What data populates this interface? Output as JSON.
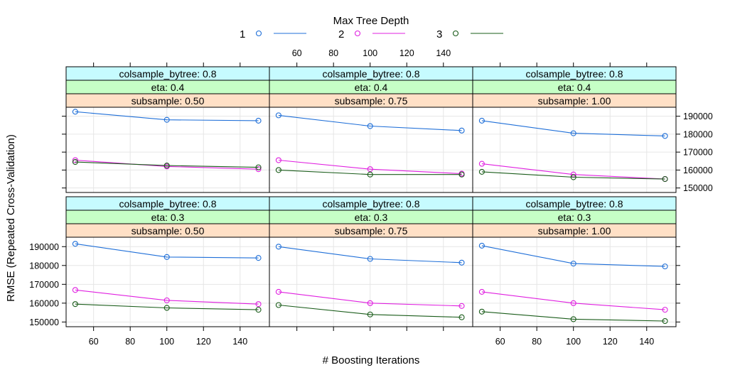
{
  "chart_data": {
    "type": "line",
    "legend": {
      "title": "Max Tree Depth",
      "position": "top",
      "entries": [
        {
          "label": "1",
          "color": "#1f6fd8"
        },
        {
          "label": "2",
          "color": "#e020e0"
        },
        {
          "label": "3",
          "color": "#1a5c1a"
        }
      ]
    },
    "xlabel": "# Boosting Iterations",
    "ylabel": "RMSE (Repeated Cross-Validation)",
    "x_ticks": [
      "60",
      "80",
      "100",
      "120",
      "140"
    ],
    "x_tick_values": [
      60,
      80,
      100,
      120,
      140
    ],
    "y_ticks": [
      "150000",
      "160000",
      "170000",
      "180000",
      "190000"
    ],
    "y_tick_values": [
      150000,
      160000,
      170000,
      180000,
      190000
    ],
    "xlim": [
      45,
      156
    ],
    "ylim": [
      147500,
      195000
    ],
    "grid": true,
    "strip_colors": {
      "colsample_bytree": "#c6fbff",
      "eta": "#c6ffc6",
      "subsample": "#ffe0c6"
    },
    "panels": [
      {
        "strips": [
          "colsample_bytree: 0.8",
          "eta: 0.4",
          "subsample: 0.50"
        ],
        "series": [
          {
            "label": "1",
            "x": [
              50,
              100,
              150
            ],
            "y": [
              192500,
              188000,
              187500
            ]
          },
          {
            "label": "2",
            "x": [
              50,
              100,
              150
            ],
            "y": [
              165500,
              162000,
              160500
            ]
          },
          {
            "label": "3",
            "x": [
              50,
              100,
              150
            ],
            "y": [
              164500,
              162500,
              161500
            ]
          }
        ]
      },
      {
        "strips": [
          "colsample_bytree: 0.8",
          "eta: 0.4",
          "subsample: 0.75"
        ],
        "series": [
          {
            "label": "1",
            "x": [
              50,
              100,
              150
            ],
            "y": [
              190500,
              184500,
              182000
            ]
          },
          {
            "label": "2",
            "x": [
              50,
              100,
              150
            ],
            "y": [
              165500,
              160500,
              158000
            ]
          },
          {
            "label": "3",
            "x": [
              50,
              100,
              150
            ],
            "y": [
              160000,
              157500,
              157500
            ]
          }
        ]
      },
      {
        "strips": [
          "colsample_bytree: 0.8",
          "eta: 0.4",
          "subsample: 1.00"
        ],
        "series": [
          {
            "label": "1",
            "x": [
              50,
              100,
              150
            ],
            "y": [
              187500,
              180500,
              179000
            ]
          },
          {
            "label": "2",
            "x": [
              50,
              100,
              150
            ],
            "y": [
              163500,
              157500,
              155000
            ]
          },
          {
            "label": "3",
            "x": [
              50,
              100,
              150
            ],
            "y": [
              159000,
              156000,
              155000
            ]
          }
        ]
      },
      {
        "strips": [
          "colsample_bytree: 0.8",
          "eta: 0.3",
          "subsample: 0.50"
        ],
        "series": [
          {
            "label": "1",
            "x": [
              50,
              100,
              150
            ],
            "y": [
              191500,
              184500,
              184000
            ]
          },
          {
            "label": "2",
            "x": [
              50,
              100,
              150
            ],
            "y": [
              167000,
              161500,
              159500
            ]
          },
          {
            "label": "3",
            "x": [
              50,
              100,
              150
            ],
            "y": [
              159500,
              157500,
              156500
            ]
          }
        ]
      },
      {
        "strips": [
          "colsample_bytree: 0.8",
          "eta: 0.3",
          "subsample: 0.75"
        ],
        "series": [
          {
            "label": "1",
            "x": [
              50,
              100,
              150
            ],
            "y": [
              190000,
              183500,
              181500
            ]
          },
          {
            "label": "2",
            "x": [
              50,
              100,
              150
            ],
            "y": [
              166000,
              160000,
              158500
            ]
          },
          {
            "label": "3",
            "x": [
              50,
              100,
              150
            ],
            "y": [
              159000,
              154000,
              152500
            ]
          }
        ]
      },
      {
        "strips": [
          "colsample_bytree: 0.8",
          "eta: 0.3",
          "subsample: 1.00"
        ],
        "series": [
          {
            "label": "1",
            "x": [
              50,
              100,
              150
            ],
            "y": [
              190500,
              181000,
              179500
            ]
          },
          {
            "label": "2",
            "x": [
              50,
              100,
              150
            ],
            "y": [
              166000,
              160000,
              156500
            ]
          },
          {
            "label": "3",
            "x": [
              50,
              100,
              150
            ],
            "y": [
              155500,
              151500,
              150500
            ]
          }
        ]
      }
    ]
  }
}
